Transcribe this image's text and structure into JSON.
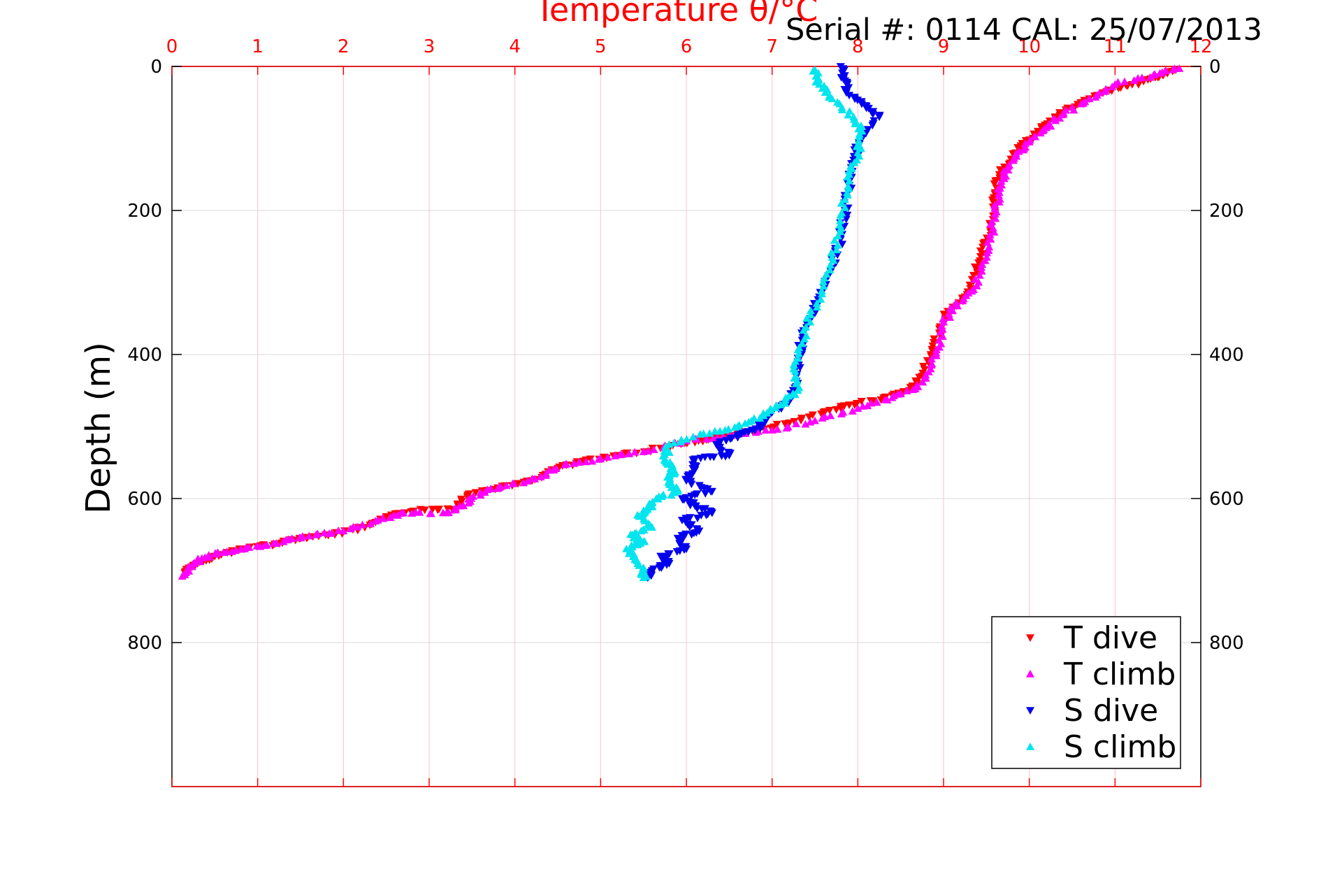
{
  "chart_data": {
    "type": "scatter",
    "title": "Temperature θ/°C",
    "annotation": "Serial #: 0114  CAL: 25/07/2013",
    "xlabel": "Temperature θ/°C",
    "ylabel": "Depth (m)",
    "xlim": [
      0,
      12
    ],
    "ylim": [
      0,
      1000
    ],
    "y_reversed": true,
    "x_axis_position": "top",
    "x_tick_color": "#ff0000",
    "grid_color_vertical": "#ffc0cb",
    "grid_color_horizontal": "#d9d9d9",
    "grid": true,
    "legend_position": "bottom-right",
    "x_ticks": [
      "0",
      "1",
      "2",
      "3",
      "4",
      "5",
      "6",
      "7",
      "8",
      "9",
      "10",
      "11",
      "12"
    ],
    "y_ticks": [
      "0",
      "200",
      "400",
      "600",
      "800"
    ],
    "series": [
      {
        "name": "T dive",
        "color": "#ff0000",
        "marker": "triangle-down",
        "points": [
          [
            11.7,
            5
          ],
          [
            11.5,
            15
          ],
          [
            11.2,
            25
          ],
          [
            10.9,
            35
          ],
          [
            10.6,
            50
          ],
          [
            10.3,
            70
          ],
          [
            10.1,
            90
          ],
          [
            9.9,
            110
          ],
          [
            9.8,
            130
          ],
          [
            9.65,
            150
          ],
          [
            9.6,
            175
          ],
          [
            9.6,
            200
          ],
          [
            9.55,
            230
          ],
          [
            9.45,
            260
          ],
          [
            9.35,
            290
          ],
          [
            9.25,
            320
          ],
          [
            9.05,
            340
          ],
          [
            8.95,
            370
          ],
          [
            8.85,
            400
          ],
          [
            8.75,
            430
          ],
          [
            8.6,
            450
          ],
          [
            8.3,
            460
          ],
          [
            7.9,
            470
          ],
          [
            7.6,
            480
          ],
          [
            7.2,
            495
          ],
          [
            6.8,
            505
          ],
          [
            6.4,
            515
          ],
          [
            6.1,
            522
          ],
          [
            5.7,
            530
          ],
          [
            5.2,
            540
          ],
          [
            4.8,
            548
          ],
          [
            4.5,
            558
          ],
          [
            4.2,
            575
          ],
          [
            3.8,
            585
          ],
          [
            3.45,
            595
          ],
          [
            3.3,
            615
          ],
          [
            2.9,
            615
          ],
          [
            2.5,
            625
          ],
          [
            2.25,
            640
          ],
          [
            1.9,
            650
          ],
          [
            1.5,
            655
          ],
          [
            1.2,
            663
          ],
          [
            0.8,
            670
          ],
          [
            0.5,
            680
          ],
          [
            0.3,
            690
          ],
          [
            0.15,
            703
          ]
        ]
      },
      {
        "name": "T climb",
        "color": "#ff00ff",
        "marker": "triangle-up",
        "points": [
          [
            11.75,
            3
          ],
          [
            11.45,
            12
          ],
          [
            11.0,
            25
          ],
          [
            10.7,
            45
          ],
          [
            10.4,
            65
          ],
          [
            10.2,
            85
          ],
          [
            10.0,
            105
          ],
          [
            9.85,
            125
          ],
          [
            9.7,
            150
          ],
          [
            9.65,
            175
          ],
          [
            9.6,
            205
          ],
          [
            9.55,
            240
          ],
          [
            9.45,
            275
          ],
          [
            9.35,
            310
          ],
          [
            9.15,
            330
          ],
          [
            9.0,
            355
          ],
          [
            8.95,
            390
          ],
          [
            8.85,
            420
          ],
          [
            8.7,
            445
          ],
          [
            8.4,
            460
          ],
          [
            8.0,
            475
          ],
          [
            7.5,
            492
          ],
          [
            7.0,
            505
          ],
          [
            6.5,
            512
          ],
          [
            6.0,
            520
          ],
          [
            5.5,
            535
          ],
          [
            5.0,
            545
          ],
          [
            4.6,
            552
          ],
          [
            4.3,
            570
          ],
          [
            3.9,
            582
          ],
          [
            3.6,
            592
          ],
          [
            3.4,
            610
          ],
          [
            3.2,
            620
          ],
          [
            2.7,
            620
          ],
          [
            2.4,
            630
          ],
          [
            2.0,
            645
          ],
          [
            1.6,
            652
          ],
          [
            1.3,
            660
          ],
          [
            0.9,
            668
          ],
          [
            0.6,
            675
          ],
          [
            0.35,
            683
          ],
          [
            0.2,
            695
          ],
          [
            0.12,
            708
          ]
        ]
      },
      {
        "name": "S dive",
        "color": "#0000ee",
        "marker": "triangle-down",
        "points": [
          [
            7.8,
            0
          ],
          [
            7.85,
            20
          ],
          [
            7.9,
            40
          ],
          [
            8.1,
            55
          ],
          [
            8.25,
            70
          ],
          [
            8.05,
            100
          ],
          [
            7.95,
            130
          ],
          [
            7.9,
            165
          ],
          [
            7.85,
            200
          ],
          [
            7.8,
            240
          ],
          [
            7.7,
            280
          ],
          [
            7.55,
            320
          ],
          [
            7.45,
            350
          ],
          [
            7.35,
            380
          ],
          [
            7.3,
            410
          ],
          [
            7.3,
            440
          ],
          [
            7.2,
            465
          ],
          [
            7.0,
            480
          ],
          [
            6.9,
            495
          ],
          [
            6.8,
            505
          ],
          [
            6.6,
            512
          ],
          [
            6.35,
            525
          ],
          [
            6.5,
            540
          ],
          [
            6.1,
            545
          ],
          [
            6.1,
            560
          ],
          [
            6.0,
            575
          ],
          [
            6.3,
            590
          ],
          [
            5.95,
            600
          ],
          [
            6.1,
            610
          ],
          [
            6.3,
            620
          ],
          [
            5.95,
            630
          ],
          [
            6.15,
            645
          ],
          [
            5.9,
            655
          ],
          [
            6.0,
            670
          ],
          [
            5.7,
            680
          ],
          [
            5.8,
            690
          ],
          [
            5.6,
            700
          ],
          [
            5.55,
            710
          ]
        ]
      },
      {
        "name": "S climb",
        "color": "#00e5ee",
        "marker": "triangle-up",
        "points": [
          [
            7.5,
            5
          ],
          [
            7.55,
            25
          ],
          [
            7.7,
            45
          ],
          [
            7.95,
            70
          ],
          [
            8.05,
            90
          ],
          [
            8.0,
            120
          ],
          [
            7.9,
            150
          ],
          [
            7.85,
            185
          ],
          [
            7.8,
            225
          ],
          [
            7.7,
            265
          ],
          [
            7.6,
            305
          ],
          [
            7.45,
            345
          ],
          [
            7.35,
            385
          ],
          [
            7.25,
            420
          ],
          [
            7.3,
            450
          ],
          [
            7.1,
            470
          ],
          [
            6.9,
            485
          ],
          [
            6.6,
            500
          ],
          [
            6.2,
            510
          ],
          [
            5.8,
            525
          ],
          [
            5.75,
            545
          ],
          [
            5.85,
            560
          ],
          [
            5.8,
            575
          ],
          [
            5.9,
            590
          ],
          [
            5.65,
            600
          ],
          [
            5.55,
            615
          ],
          [
            5.45,
            625
          ],
          [
            5.6,
            640
          ],
          [
            5.35,
            650
          ],
          [
            5.5,
            660
          ],
          [
            5.3,
            670
          ],
          [
            5.4,
            685
          ],
          [
            5.5,
            700
          ],
          [
            5.5,
            710
          ]
        ]
      }
    ]
  }
}
